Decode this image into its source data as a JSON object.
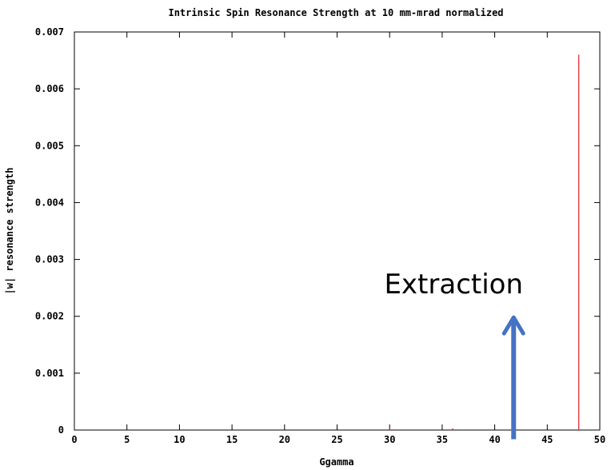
{
  "chart_data": {
    "type": "bar",
    "title": "Intrinsic Spin Resonance Strength at 10 mm-mrad normalized",
    "xlabel": "Ggamma",
    "ylabel": "|w| resonance strength",
    "xlim": [
      0,
      50
    ],
    "ylim": [
      0,
      0.007
    ],
    "x_ticks": [
      "0",
      "5",
      "10",
      "15",
      "20",
      "25",
      "30",
      "35",
      "40",
      "45",
      "50"
    ],
    "y_ticks": [
      "0",
      "0.001",
      "0.002",
      "0.003",
      "0.004",
      "0.005",
      "0.006",
      "0.007"
    ],
    "grid": false,
    "series": [
      {
        "color": "#e8191f",
        "points": [
          {
            "x": 30.0,
            "y": 4e-05
          },
          {
            "x": 36.0,
            "y": 3e-05
          },
          {
            "x": 48.0,
            "y": 0.0066
          }
        ]
      }
    ],
    "annotations": [
      {
        "text": "Extraction",
        "arrow_x": 41.8,
        "arrow_from_y": -5e-05,
        "arrow_to_y": 0.00198,
        "color": "#4472c4"
      }
    ]
  }
}
